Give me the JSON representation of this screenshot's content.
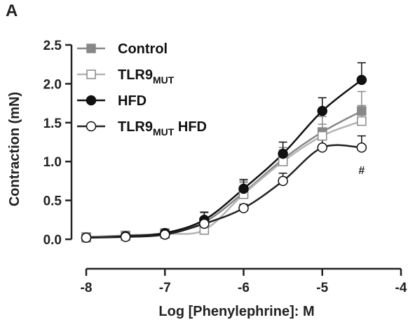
{
  "panel_label": "A",
  "chart_data": {
    "type": "line",
    "xlabel": "Log [Phenylephrine]: M",
    "ylabel": "Contraction (mN)",
    "xlim": [
      -8,
      -4
    ],
    "ylim": [
      0,
      2.5
    ],
    "x_ticks": [
      "-8",
      "-7",
      "-6",
      "-5",
      "-4"
    ],
    "y_ticks": [
      "0.0",
      "0.5",
      "1.0",
      "1.5",
      "2.0",
      "2.5"
    ],
    "x": [
      -8,
      -7.5,
      -7,
      -6.5,
      -6,
      -5.5,
      -5,
      -4.5
    ],
    "legend_position": "top-left",
    "series": [
      {
        "name": "Control",
        "name_main": "Control",
        "name_sub": "",
        "name_tail": "",
        "marker": "square",
        "fill": "#888888",
        "stroke": "#888888",
        "line": "#888888",
        "values": [
          0.03,
          0.05,
          0.08,
          0.22,
          0.6,
          1.03,
          1.38,
          1.65
        ],
        "errors": [
          0.03,
          0.03,
          0.03,
          0.12,
          0.15,
          0.15,
          0.2,
          0.25
        ]
      },
      {
        "name": "TLR9MUT",
        "name_main": "TLR9",
        "name_sub": "MUT",
        "name_tail": "",
        "marker": "square",
        "fill": "#ffffff",
        "stroke": "#888888",
        "line": "#b4b4b4",
        "values": [
          0.02,
          0.04,
          0.07,
          0.12,
          0.58,
          1.0,
          1.33,
          1.52
        ],
        "errors": [
          0.03,
          0.03,
          0.03,
          0.08,
          0.15,
          0.15,
          0.15,
          0.2
        ]
      },
      {
        "name": "HFD",
        "name_main": "HFD",
        "name_sub": "",
        "name_tail": "",
        "marker": "circle",
        "fill": "#111111",
        "stroke": "#111111",
        "line": "#111111",
        "values": [
          0.02,
          0.04,
          0.08,
          0.25,
          0.65,
          1.1,
          1.65,
          2.05
        ],
        "errors": [
          0.03,
          0.03,
          0.03,
          0.1,
          0.12,
          0.15,
          0.17,
          0.22
        ]
      },
      {
        "name": "TLR9MUT HFD",
        "name_main": "TLR9",
        "name_sub": "MUT",
        "name_tail": " HFD",
        "marker": "circle",
        "fill": "#ffffff",
        "stroke": "#111111",
        "line": "#222222",
        "values": [
          0.02,
          0.03,
          0.06,
          0.2,
          0.4,
          0.75,
          1.18,
          1.18
        ],
        "errors": [
          0.02,
          0.02,
          0.02,
          0.05,
          0.05,
          0.1,
          0.12,
          0.15
        ]
      }
    ],
    "annotations": [
      {
        "text": "#",
        "x": -4.5,
        "y": 0.93
      }
    ]
  }
}
